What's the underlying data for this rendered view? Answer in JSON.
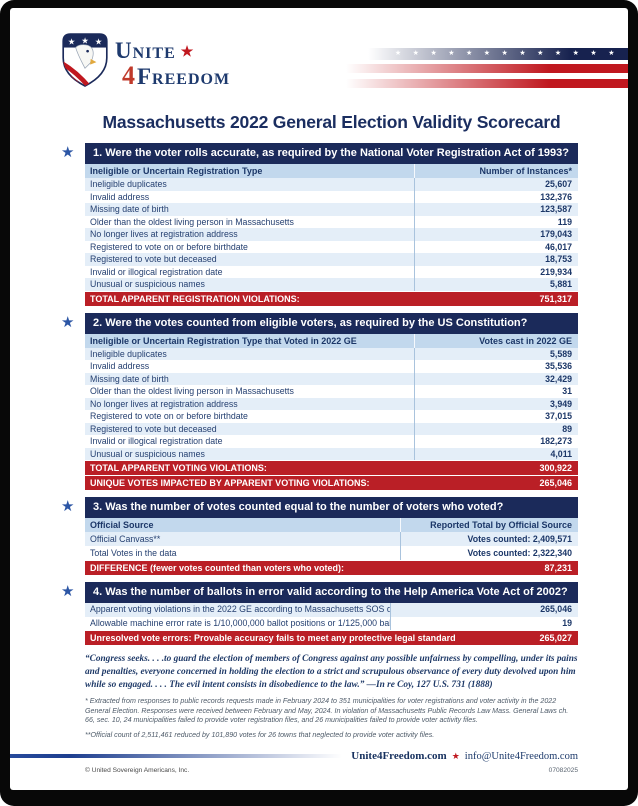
{
  "page": {
    "title": "Massachusetts 2022 General Election Validity Scorecard"
  },
  "logo": {
    "name_line1": "Unite",
    "star": "★",
    "digit": "4",
    "name_line2": "Freedom"
  },
  "decor": {
    "stars_row": "★★★★★★★★★★★★★",
    "section_star": "★"
  },
  "colors": {
    "navy": "#1b2a5a",
    "red_bar": "#ba1f26",
    "stripe_red": "#c0181f",
    "header_light_blue": "#c2d8ed",
    "row_light_blue": "#e4eef8"
  },
  "sections": [
    {
      "title": "1. Were the voter rolls accurate, as required by the National Voter Registration Act of 1993?",
      "col_label": "Ineligible or Uncertain Registration Type",
      "col_value": "Number of Instances*",
      "rows": [
        {
          "label": "Ineligible duplicates",
          "value": "25,607"
        },
        {
          "label": "Invalid address",
          "value": "132,376"
        },
        {
          "label": "Missing date of birth",
          "value": "123,587"
        },
        {
          "label": "Older than the oldest living person in Massachusetts",
          "value": "119"
        },
        {
          "label": "No longer lives at registration address",
          "value": "179,043"
        },
        {
          "label": "Registered to vote on or before birthdate",
          "value": "46,017"
        },
        {
          "label": "Registered to vote but deceased",
          "value": "18,753"
        },
        {
          "label": "Invalid or illogical registration date",
          "value": "219,934"
        },
        {
          "label": "Unusual or suspicious names",
          "value": "5,881"
        }
      ],
      "totals": [
        {
          "label": "TOTAL APPARENT REGISTRATION VIOLATIONS:",
          "value": "751,317"
        }
      ]
    },
    {
      "title": "2. Were the votes counted from eligible voters, as required by the US Constitution?",
      "col_label": "Ineligible or Uncertain Registration Type that Voted in 2022 GE",
      "col_value": "Votes cast in 2022 GE",
      "rows": [
        {
          "label": "Ineligible duplicates",
          "value": "5,589"
        },
        {
          "label": "Invalid address",
          "value": "35,536"
        },
        {
          "label": "Missing date of birth",
          "value": "32,429"
        },
        {
          "label": "Older than the oldest living person in Massachusetts",
          "value": "31"
        },
        {
          "label": "No longer lives at registration address",
          "value": "3,949"
        },
        {
          "label": "Registered to vote on or before birthdate",
          "value": "37,015"
        },
        {
          "label": "Registered to vote but deceased",
          "value": "89"
        },
        {
          "label": "Invalid or illogical registration date",
          "value": "182,273"
        },
        {
          "label": "Unusual or suspicious names",
          "value": "4,011"
        }
      ],
      "totals": [
        {
          "label": "TOTAL APPARENT VOTING VIOLATIONS:",
          "value": "300,922"
        },
        {
          "label": "UNIQUE VOTES IMPACTED BY APPARENT VOTING VIOLATIONS:",
          "value": "265,046"
        }
      ]
    },
    {
      "title": "3. Was the number of votes counted equal to the number of voters who voted?",
      "col_label": "Official Source",
      "col_value": "Reported Total by Official Source",
      "rows": [
        {
          "label": "Official Canvass**",
          "value": "Votes counted: 2,409,571"
        },
        {
          "label": "Total Votes in the data",
          "value": "Votes counted: 2,322,340"
        }
      ],
      "totals": [
        {
          "label": "DIFFERENCE (fewer votes counted than voters who voted):",
          "value": "87,231"
        }
      ]
    },
    {
      "title": "4. Was the number of ballots in error valid according to the Help America Vote Act of 2002?",
      "rows": [
        {
          "label": "Apparent voting violations in the 2022 GE according to Massachusetts SOS data",
          "value": "265,046"
        },
        {
          "label": "Allowable machine error rate is 1/10,000,000 ballot positions or 1/125,000 ballots",
          "value": "19"
        }
      ],
      "totals": [
        {
          "label": "Unresolved vote errors: Provable accuracy fails to meet any protective legal standard",
          "value": "265,027"
        }
      ]
    }
  ],
  "quote": {
    "text": "“Congress seeks. . . .to guard the election of members of Congress against any possible unfairness by compelling, under its pains and penalties, everyone concerned in holding the election to a strict and scrupulous observance of every duty devolved upon him while so engaged. . . . The evil intent consists in disobedience to the law.”",
    "attribution": " —In re Coy, 127 U.S. 731 (1888)"
  },
  "footnotes": [
    "* Extracted from responses to public records requests made in February 2024 to 351 municipalities for voter registrations and voter activity in the 2022 General Election. Responses were received between February and May, 2024. In violation of Massachusetts Public Records Law Mass. General Laws ch. 66, sec. 10, 24 municipalities failed to provide voter registration files, and 26 municipalities failed to provide voter activity files.",
    "**Official count of 2,511,461 reduced by 101,890 votes for 26 towns that neglected to provide voter activity files."
  ],
  "footer": {
    "website": "Unite4Freedom.com",
    "star": "★",
    "email": "info@Unite4Freedom.com",
    "copyright": "© United Sovereign Americans, Inc.",
    "date_code": "07082025"
  }
}
